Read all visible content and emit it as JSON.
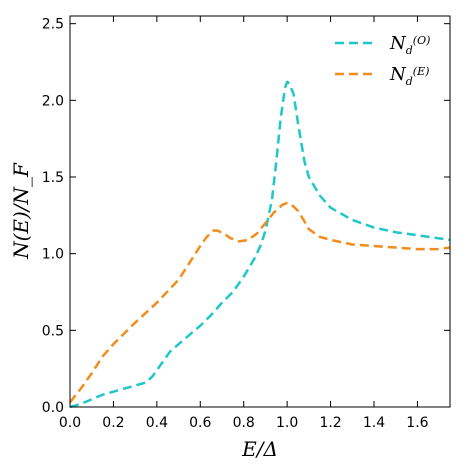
{
  "chart_data": {
    "type": "line",
    "xlabel": "E/Δ",
    "ylabel": "N(E)/N_F",
    "xlim": [
      0.0,
      1.75
    ],
    "ylim": [
      0.0,
      2.55
    ],
    "x_ticks": [
      "0.0",
      "0.2",
      "0.4",
      "0.6",
      "0.8",
      "1.0",
      "1.2",
      "1.4",
      "1.6"
    ],
    "y_ticks": [
      "0.0",
      "0.5",
      "1.0",
      "1.5",
      "2.0",
      "2.5"
    ],
    "grid": false,
    "legend_position": "top-right",
    "series": [
      {
        "name": "N_d^(O)",
        "legend_main": "N",
        "legend_sub": "d",
        "legend_sup": "(O)",
        "color": "#1fc7c7",
        "style": "dashed",
        "x": [
          0.0,
          0.05,
          0.1,
          0.15,
          0.2,
          0.25,
          0.3,
          0.35,
          0.38,
          0.42,
          0.46,
          0.5,
          0.55,
          0.6,
          0.65,
          0.7,
          0.75,
          0.8,
          0.85,
          0.88,
          0.9,
          0.93,
          0.95,
          0.97,
          0.99,
          1.0,
          1.01,
          1.03,
          1.05,
          1.08,
          1.1,
          1.15,
          1.2,
          1.3,
          1.4,
          1.5,
          1.6,
          1.7,
          1.75
        ],
        "y": [
          0.0,
          0.02,
          0.05,
          0.08,
          0.1,
          0.12,
          0.14,
          0.16,
          0.2,
          0.28,
          0.36,
          0.41,
          0.47,
          0.53,
          0.6,
          0.68,
          0.75,
          0.85,
          0.97,
          1.06,
          1.15,
          1.35,
          1.6,
          1.88,
          2.08,
          2.12,
          2.11,
          2.04,
          1.85,
          1.6,
          1.5,
          1.38,
          1.3,
          1.22,
          1.17,
          1.14,
          1.12,
          1.1,
          1.09
        ]
      },
      {
        "name": "N_d^(E)",
        "legend_main": "N",
        "legend_sub": "d",
        "legend_sup": "(E)",
        "color": "#f28c1b",
        "style": "dashed",
        "x": [
          0.0,
          0.05,
          0.1,
          0.15,
          0.2,
          0.3,
          0.4,
          0.5,
          0.55,
          0.6,
          0.63,
          0.66,
          0.68,
          0.71,
          0.74,
          0.78,
          0.82,
          0.86,
          0.9,
          0.94,
          0.98,
          1.0,
          1.02,
          1.05,
          1.08,
          1.1,
          1.15,
          1.2,
          1.3,
          1.4,
          1.5,
          1.6,
          1.7,
          1.75
        ],
        "y": [
          0.03,
          0.12,
          0.22,
          0.33,
          0.41,
          0.55,
          0.68,
          0.83,
          0.94,
          1.05,
          1.11,
          1.15,
          1.15,
          1.13,
          1.1,
          1.08,
          1.09,
          1.13,
          1.2,
          1.27,
          1.32,
          1.33,
          1.32,
          1.28,
          1.21,
          1.16,
          1.11,
          1.09,
          1.06,
          1.05,
          1.04,
          1.03,
          1.03,
          1.04
        ]
      }
    ]
  }
}
